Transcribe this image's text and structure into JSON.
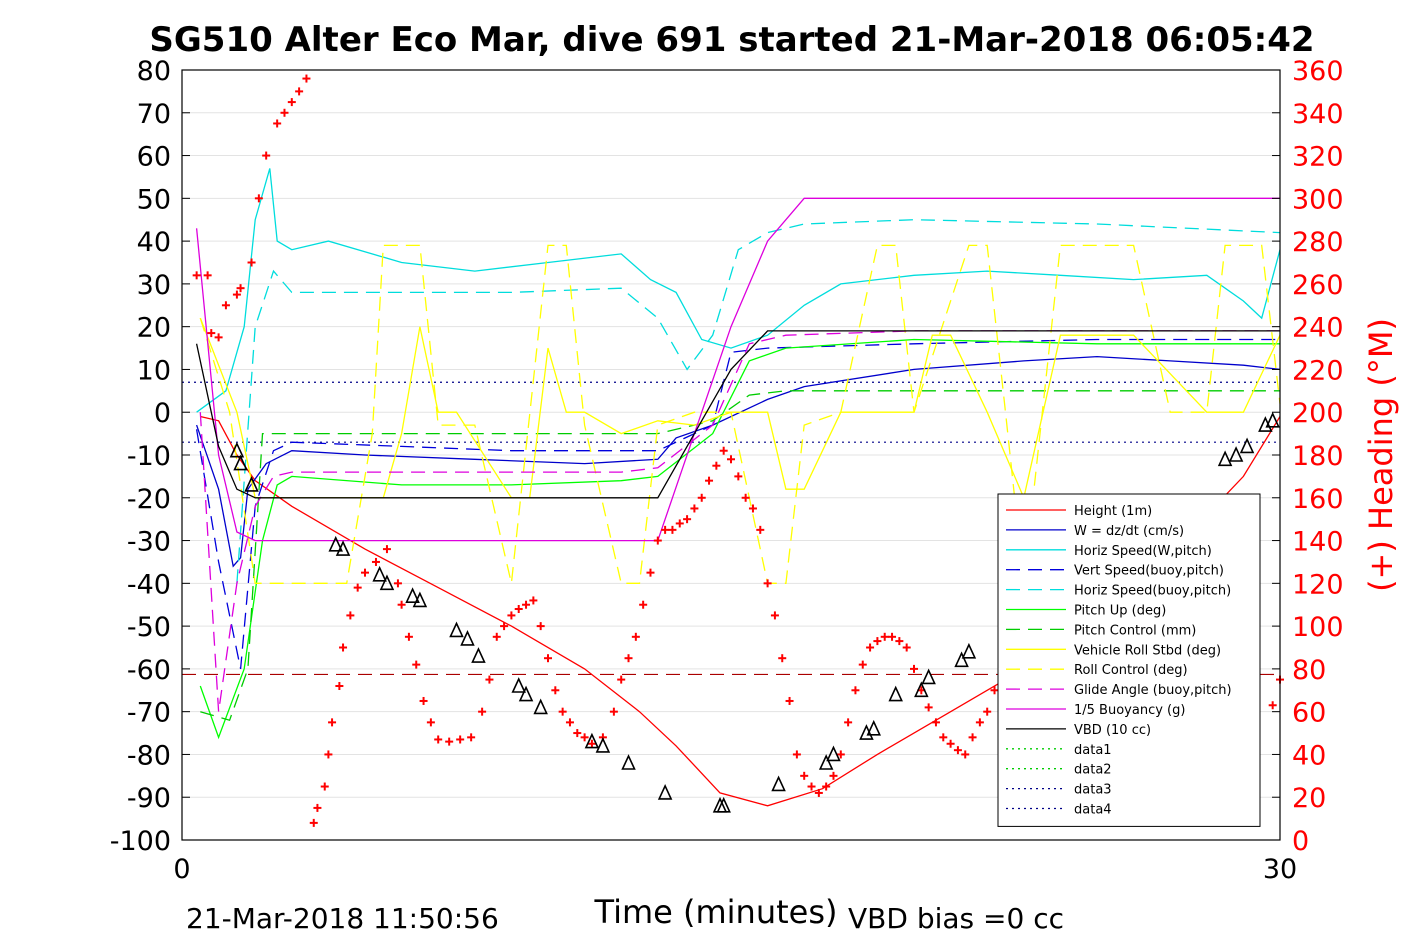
{
  "chart_data": {
    "type": "line",
    "title": "SG510 Alter Eco Mar, dive 691 started 21-Mar-2018 06:05:42",
    "xlabel": "Time (minutes)",
    "ylabel_right": "(+) Heading (°M)",
    "xlim": [
      0,
      30
    ],
    "ylim_left": [
      -100,
      80
    ],
    "ylim_right": [
      0,
      360
    ],
    "xticks": [
      "0",
      "30"
    ],
    "yticks_left": [
      "80",
      "70",
      "60",
      "50",
      "40",
      "30",
      "20",
      "10",
      "0",
      "-10",
      "-20",
      "-30",
      "-40",
      "-50",
      "-60",
      "-70",
      "-80",
      "-90",
      "-100"
    ],
    "yticks_right": [
      "360",
      "340",
      "320",
      "300",
      "280",
      "260",
      "240",
      "220",
      "200",
      "180",
      "160",
      "140",
      "120",
      "100",
      "80",
      "60",
      "40",
      "20",
      "0"
    ],
    "grid": true,
    "legend_position": "bottom-right",
    "footer_left": "21-Mar-2018 11:50:56",
    "footer_right": "VBD bias =0 cc",
    "colors": {
      "right_axis": "#ff0000",
      "heading": "#ff0000"
    },
    "series": [
      {
        "name": "Height (1m)",
        "color": "#ff0000",
        "style": "solid",
        "x": [
          0.5,
          1.0,
          1.5,
          2.0,
          3.0,
          5.0,
          7.0,
          9.0,
          11.0,
          12.5,
          13.5,
          14.7,
          16.0,
          17.5,
          19.0,
          21.0,
          23.0,
          25.0,
          27.0,
          29.0,
          30.0
        ],
        "y": [
          -1,
          -2,
          -10,
          -16,
          -22,
          -32,
          -41,
          -50,
          -60,
          -70,
          -78,
          -89,
          -92,
          -88,
          -80,
          -70,
          -60,
          -47,
          -33,
          -15,
          -1
        ]
      },
      {
        "name": "W = dz/dt (cm/s)",
        "color": "#0000cc",
        "style": "solid",
        "x": [
          0.4,
          1.0,
          1.4,
          1.6,
          1.8,
          2.3,
          3.0,
          5.0,
          8.0,
          11.0,
          13.0,
          13.5,
          14.5,
          16.0,
          17.0,
          20.0,
          23.0,
          25.0,
          27.0,
          29.0,
          30.0
        ],
        "y": [
          -3,
          -18,
          -36,
          -34,
          -18,
          -12,
          -9,
          -10,
          -11,
          -12,
          -11,
          -6,
          -3,
          3,
          6,
          10,
          12,
          13,
          12,
          11,
          10
        ]
      },
      {
        "name": "Horiz Speed(W,pitch)",
        "color": "#00dddd",
        "style": "solid",
        "x": [
          0.4,
          1.2,
          1.7,
          2.0,
          2.4,
          2.6,
          3.0,
          4.0,
          6.0,
          8.0,
          10.0,
          12.0,
          12.8,
          13.5,
          14.2,
          15.0,
          16.0,
          17.0,
          18.0,
          20.0,
          22.0,
          24.0,
          26.0,
          28.0,
          29.0,
          29.5,
          30.0
        ],
        "y": [
          0,
          5,
          20,
          45,
          57,
          40,
          38,
          40,
          35,
          33,
          35,
          37,
          31,
          28,
          17,
          15,
          18,
          25,
          30,
          32,
          33,
          32,
          31,
          32,
          26,
          22,
          38
        ]
      },
      {
        "name": "Vert Speed(buoy,pitch)",
        "color": "#0000dd",
        "style": "dashed",
        "x": [
          0.4,
          1.0,
          1.6,
          2.0,
          2.5,
          3.0,
          6.0,
          9.0,
          12.0,
          13.0,
          14.5,
          15.0,
          16.0,
          20.0,
          25.0,
          30.0
        ],
        "y": [
          -4,
          -35,
          -60,
          -22,
          -9,
          -7,
          -8,
          -9,
          -9,
          -9,
          -3,
          14,
          15,
          16,
          17,
          17
        ]
      },
      {
        "name": "Horiz Speed(buoy,pitch)",
        "color": "#00dddd",
        "style": "dashed",
        "x": [
          1.5,
          2.0,
          2.5,
          3.0,
          6.0,
          9.0,
          12.0,
          13.0,
          13.8,
          14.5,
          15.2,
          16.0,
          17.0,
          20.0,
          25.0,
          30.0
        ],
        "y": [
          -40,
          20,
          33,
          28,
          28,
          28,
          29,
          22,
          10,
          18,
          38,
          42,
          44,
          45,
          44,
          42
        ]
      },
      {
        "name": "Pitch Up (deg)",
        "color": "#00ff00",
        "style": "solid",
        "x": [
          0.5,
          1.0,
          1.7,
          2.2,
          2.6,
          3.0,
          6.0,
          9.0,
          12.0,
          13.0,
          14.5,
          15.5,
          16.5,
          20.0,
          25.0,
          30.0
        ],
        "y": [
          -64,
          -76,
          -60,
          -30,
          -17,
          -15,
          -17,
          -17,
          -16,
          -15,
          -5,
          12,
          15,
          17,
          16,
          16
        ]
      },
      {
        "name": "Pitch Control (mm)",
        "color": "#00cc00",
        "style": "dashed",
        "x": [
          0.5,
          1.3,
          1.8,
          2.2,
          3.0,
          6.0,
          9.0,
          12.0,
          13.0,
          14.5,
          15.5,
          16.5,
          20.0,
          25.0,
          30.0
        ],
        "y": [
          -70,
          -72,
          -60,
          -5,
          -5,
          -5,
          -5,
          -5,
          -5,
          -2,
          4,
          5,
          5,
          5,
          5
        ]
      },
      {
        "name": "Vehicle Roll Stbd (deg)",
        "color": "#ffff00",
        "style": "solid",
        "x": [
          0.5,
          1.5,
          2.0,
          3.0,
          5.0,
          5.5,
          6.0,
          6.5,
          7.0,
          7.5,
          9.0,
          9.5,
          10.0,
          10.5,
          11.0,
          12.0,
          13.0,
          14.0,
          15.0,
          16.0,
          16.5,
          17.0,
          18.0,
          20.0,
          20.5,
          21.0,
          22.0,
          23.0,
          24.0,
          26.0,
          28.0,
          29.0,
          30.0
        ],
        "y": [
          22,
          0,
          -20,
          -20,
          -20,
          -20,
          -5,
          20,
          0,
          0,
          -20,
          -20,
          15,
          0,
          0,
          -5,
          -2,
          -3,
          0,
          0,
          -18,
          -18,
          0,
          0,
          18,
          18,
          0,
          -20,
          18,
          18,
          0,
          0,
          18
        ]
      },
      {
        "name": "Roll Control (deg)",
        "color": "#ffff00",
        "style": "dashed",
        "x": [
          0.5,
          1.3,
          2.0,
          2.5,
          3.0,
          4.5,
          5.2,
          5.5,
          6.5,
          7.0,
          8.0,
          9.0,
          10.0,
          10.5,
          11.0,
          12.0,
          12.5,
          13.0,
          14.0,
          15.0,
          16.0,
          16.5,
          17.0,
          18.0,
          19.0,
          19.5,
          20.0,
          21.5,
          22.0,
          22.5,
          23.0,
          24.0,
          26.0,
          27.0,
          28.0,
          28.5,
          29.5,
          30.0
        ],
        "y": [
          22,
          0,
          -40,
          -40,
          -40,
          -40,
          -5,
          39,
          39,
          -3,
          -3,
          -40,
          39,
          39,
          -3,
          -40,
          -40,
          -3,
          0,
          0,
          -40,
          -40,
          -3,
          0,
          39,
          39,
          0,
          39,
          39,
          0,
          -40,
          39,
          39,
          0,
          0,
          39,
          39,
          2
        ]
      },
      {
        "name": "Glide Angle (buoy,pitch)",
        "color": "#dd00dd",
        "style": "dashed",
        "x": [
          0.5,
          1.0,
          1.5,
          2.0,
          2.5,
          3.0,
          6.0,
          9.0,
          12.0,
          13.0,
          14.5,
          15.5,
          16.5,
          20.0,
          25.0,
          30.0
        ],
        "y": [
          0,
          -70,
          -40,
          -22,
          -15,
          -14,
          -14,
          -14,
          -14,
          -13,
          -3,
          16,
          18,
          19,
          19,
          19
        ]
      },
      {
        "name": "1/5 Buoyancy (g)",
        "color": "#dd00dd",
        "style": "solid",
        "x": [
          0.4,
          1.0,
          1.5,
          2.0,
          2.5,
          3.0,
          6.0,
          9.0,
          12.0,
          13.0,
          14.0,
          15.0,
          16.0,
          17.0,
          20.0,
          25.0,
          30.0
        ],
        "y": [
          43,
          -10,
          -28,
          -30,
          -30,
          -30,
          -30,
          -30,
          -30,
          -30,
          -5,
          20,
          40,
          50,
          50,
          50,
          50
        ]
      },
      {
        "name": "VBD (10 cc)",
        "color": "#000000",
        "style": "solid",
        "x": [
          0.4,
          1.0,
          1.5,
          2.0,
          3.0,
          6.0,
          9.0,
          12.0,
          13.0,
          14.0,
          15.0,
          16.0,
          17.0,
          20.0,
          25.0,
          30.0
        ],
        "y": [
          16,
          -8,
          -18,
          -20,
          -20,
          -20,
          -20,
          -20,
          -20,
          -5,
          10,
          19,
          19,
          19,
          19,
          19
        ]
      },
      {
        "name": "data1",
        "color": "#00cc00",
        "style": "dotted",
        "x": [],
        "y": []
      },
      {
        "name": "data2",
        "color": "#00cc00",
        "style": "dotted",
        "x": [],
        "y": []
      },
      {
        "name": "data3",
        "color": "#000088",
        "style": "dotted",
        "x": [],
        "y": []
      },
      {
        "name": "data4",
        "color": "#000088",
        "style": "dotted",
        "x": [],
        "y": []
      }
    ],
    "reference_lines": [
      {
        "y": 7,
        "color": "#000088",
        "style": "dotted"
      },
      {
        "y": -7,
        "color": "#000088",
        "style": "dotted"
      },
      {
        "y": -61.3,
        "color": "#aa0000",
        "style": "dashed"
      }
    ],
    "heading_points": {
      "axis": "right",
      "x": [
        0.4,
        0.7,
        0.8,
        1.0,
        1.2,
        1.5,
        1.6,
        1.9,
        2.1,
        2.3,
        2.6,
        2.8,
        3.0,
        3.2,
        3.4,
        3.6,
        3.7,
        3.9,
        4.0,
        4.1,
        4.3,
        4.4,
        4.6,
        4.8,
        5.0,
        5.3,
        5.6,
        5.9,
        6.0,
        6.2,
        6.4,
        6.6,
        6.8,
        7.0,
        7.3,
        7.6,
        7.9,
        8.2,
        8.4,
        8.6,
        8.8,
        9.0,
        9.2,
        9.4,
        9.6,
        9.8,
        10.0,
        10.2,
        10.4,
        10.6,
        10.8,
        11.0,
        11.2,
        11.5,
        11.8,
        12.0,
        12.2,
        12.4,
        12.6,
        12.8,
        13.0,
        13.2,
        13.4,
        13.6,
        13.8,
        14.0,
        14.2,
        14.4,
        14.6,
        14.8,
        15.0,
        15.2,
        15.4,
        15.6,
        15.8,
        16.0,
        16.2,
        16.4,
        16.6,
        16.8,
        17.0,
        17.2,
        17.4,
        17.6,
        17.8,
        18.0,
        18.2,
        18.4,
        18.6,
        18.8,
        19.0,
        19.2,
        19.4,
        19.6,
        19.8,
        20.0,
        20.2,
        20.4,
        20.6,
        20.8,
        21.0,
        21.2,
        21.4,
        21.6,
        21.8,
        22.0,
        22.2,
        22.4,
        22.6,
        22.8,
        23.0,
        23.2,
        23.4,
        23.6,
        23.8,
        24.0,
        24.2,
        24.4,
        24.6,
        29.8,
        30.0
      ],
      "y": [
        264,
        264,
        237,
        235,
        250,
        255,
        258,
        270,
        300,
        320,
        335,
        340,
        345,
        350,
        356,
        8,
        15,
        25,
        40,
        55,
        72,
        90,
        105,
        118,
        125,
        130,
        136,
        120,
        110,
        95,
        82,
        65,
        55,
        47,
        46,
        47,
        48,
        60,
        75,
        95,
        100,
        105,
        108,
        110,
        112,
        100,
        85,
        70,
        60,
        55,
        50,
        48,
        45,
        48,
        60,
        75,
        85,
        95,
        110,
        125,
        140,
        145,
        145,
        148,
        150,
        155,
        160,
        168,
        175,
        182,
        178,
        170,
        160,
        155,
        145,
        120,
        105,
        85,
        65,
        40,
        30,
        25,
        22,
        25,
        30,
        40,
        55,
        70,
        82,
        90,
        93,
        95,
        95,
        93,
        90,
        80,
        70,
        62,
        55,
        48,
        45,
        42,
        40,
        48,
        55,
        60,
        70,
        80,
        90,
        98,
        105,
        110,
        112,
        114,
        110,
        100,
        92,
        82,
        70,
        63,
        75
      ]
    },
    "markers": {
      "x": [
        1.5,
        1.6,
        1.9,
        4.2,
        4.4,
        5.4,
        5.6,
        6.3,
        6.5,
        7.5,
        7.8,
        8.1,
        9.2,
        9.4,
        9.8,
        11.2,
        11.5,
        12.2,
        13.2,
        14.7,
        14.8,
        16.3,
        17.6,
        17.8,
        18.7,
        18.9,
        19.5,
        20.2,
        20.4,
        21.3,
        21.5,
        28.5,
        28.8,
        29.1,
        29.6,
        29.8
      ],
      "y": [
        -9,
        -12,
        -17,
        -31,
        -32,
        -38,
        -40,
        -43,
        -44,
        -51,
        -53,
        -57,
        -64,
        -66,
        -69,
        -77,
        -78,
        -82,
        -89,
        -92,
        -92,
        -87,
        -82,
        -80,
        -75,
        -74,
        -66,
        -65,
        -62,
        -58,
        -56,
        -11,
        -10,
        -8,
        -3,
        -2
      ]
    }
  }
}
